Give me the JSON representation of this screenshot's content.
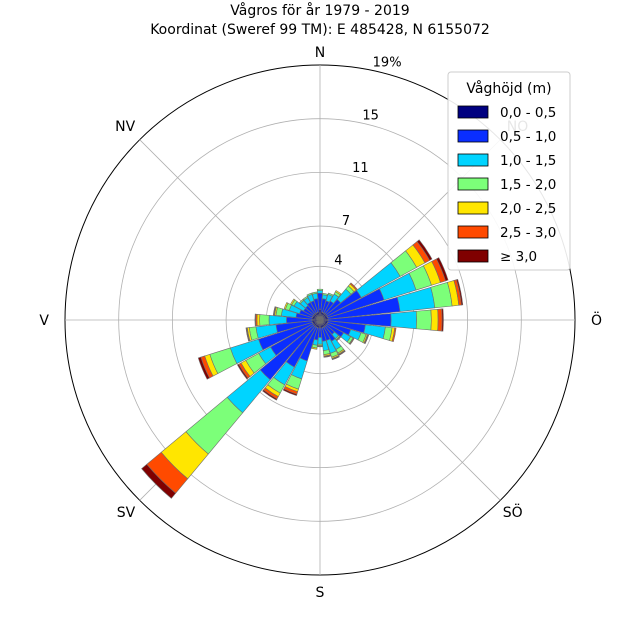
{
  "chart_data": {
    "type": "windrose",
    "title": "Vågros för år 1979 - 2019",
    "subtitle": "Koordinat (Sweref 99 TM): E 485428, N 6155072",
    "unit_suffix": "%",
    "direction_labels": [
      "N",
      "NO",
      "Ö",
      "SÖ",
      "S",
      "SV",
      "V",
      "NV"
    ],
    "ring_values": [
      4,
      7,
      11,
      15,
      19
    ],
    "r_max": 19,
    "legend": {
      "title": "Våghöjd (m)",
      "position": "top-right"
    },
    "bins": [
      {
        "label": "0,0 - 0,5",
        "color": "#000080"
      },
      {
        "label": "0,5 - 1,0",
        "color": "#0a2eff"
      },
      {
        "label": "1,0 - 1,5",
        "color": "#00d4ff"
      },
      {
        "label": "1,5 - 2,0",
        "color": "#7cff79"
      },
      {
        "label": "2,0 - 2,5",
        "color": "#ffe600"
      },
      {
        "label": "2,5 - 3,0",
        "color": "#ff4a00"
      },
      {
        "label": "≥ 3,0",
        "color": "#800000"
      }
    ],
    "sectors": [
      {
        "direction_deg": 0,
        "cum": [
          0.8,
          2.0,
          2.2,
          2.3,
          2.3,
          2.3,
          2.3
        ]
      },
      {
        "direction_deg": 11.25,
        "cum": [
          0.6,
          1.6,
          1.9,
          2.0,
          2.0,
          2.0,
          2.0
        ]
      },
      {
        "direction_deg": 22.5,
        "cum": [
          0.6,
          1.5,
          2.0,
          2.1,
          2.1,
          2.1,
          2.1
        ]
      },
      {
        "direction_deg": 33.75,
        "cum": [
          0.6,
          1.6,
          2.2,
          2.4,
          2.5,
          2.5,
          2.5
        ]
      },
      {
        "direction_deg": 45,
        "cum": [
          0.6,
          2.0,
          3.0,
          3.3,
          3.5,
          3.6,
          3.6
        ]
      },
      {
        "direction_deg": 56.25,
        "cum": [
          0.6,
          3.5,
          6.8,
          8.2,
          8.9,
          9.3,
          9.5
        ]
      },
      {
        "direction_deg": 67.5,
        "cum": [
          0.6,
          5.0,
          7.5,
          8.7,
          9.4,
          9.8,
          10.0
        ]
      },
      {
        "direction_deg": 78.75,
        "cum": [
          0.6,
          6.0,
          8.6,
          9.9,
          10.4,
          10.6,
          10.7
        ]
      },
      {
        "direction_deg": 90,
        "cum": [
          0.6,
          5.3,
          7.2,
          8.3,
          8.8,
          9.1,
          9.2
        ]
      },
      {
        "direction_deg": 101.25,
        "cum": [
          0.6,
          3.4,
          4.9,
          5.4,
          5.6,
          5.7,
          5.7
        ]
      },
      {
        "direction_deg": 112.5,
        "cum": [
          0.6,
          2.4,
          3.2,
          3.6,
          3.7,
          3.75,
          3.8
        ]
      },
      {
        "direction_deg": 123.75,
        "cum": [
          0.6,
          2.0,
          2.6,
          2.8,
          2.85,
          2.9,
          2.9
        ]
      },
      {
        "direction_deg": 135,
        "cum": [
          0.6,
          1.4,
          1.8,
          1.9,
          1.95,
          2.0,
          2.0
        ]
      },
      {
        "direction_deg": 146.25,
        "cum": [
          0.6,
          1.8,
          2.5,
          2.8,
          2.9,
          2.95,
          3.0
        ]
      },
      {
        "direction_deg": 157.5,
        "cum": [
          0.6,
          1.6,
          2.6,
          2.9,
          3.0,
          3.05,
          3.1
        ]
      },
      {
        "direction_deg": 168.75,
        "cum": [
          0.6,
          1.6,
          2.3,
          2.6,
          2.7,
          2.75,
          2.8
        ]
      },
      {
        "direction_deg": 180,
        "cum": [
          0.6,
          1.3,
          1.8,
          1.9,
          1.95,
          2.0,
          2.0
        ]
      },
      {
        "direction_deg": 191.25,
        "cum": [
          0.6,
          1.5,
          1.9,
          2.1,
          2.2,
          2.2,
          2.2
        ]
      },
      {
        "direction_deg": 202.5,
        "cum": [
          0.6,
          3.2,
          4.6,
          5.4,
          5.6,
          5.8,
          5.9
        ]
      },
      {
        "direction_deg": 213.75,
        "cum": [
          0.6,
          4.0,
          5.5,
          6.2,
          6.5,
          6.7,
          6.8
        ]
      },
      {
        "direction_deg": 225,
        "cum": [
          0.6,
          5.8,
          9.0,
          13.0,
          15.4,
          16.8,
          17.3
        ]
      },
      {
        "direction_deg": 236.25,
        "cum": [
          0.6,
          4.2,
          5.2,
          6.3,
          6.7,
          6.9,
          7.0
        ]
      },
      {
        "direction_deg": 247.5,
        "cum": [
          0.6,
          4.8,
          7.0,
          8.6,
          9.0,
          9.3,
          9.5
        ]
      },
      {
        "direction_deg": 258.75,
        "cum": [
          0.6,
          3.3,
          4.8,
          5.3,
          5.45,
          5.5,
          5.55
        ]
      },
      {
        "direction_deg": 270,
        "cum": [
          0.6,
          2.5,
          3.8,
          4.5,
          4.7,
          4.8,
          4.85
        ]
      },
      {
        "direction_deg": 281.25,
        "cum": [
          0.6,
          1.8,
          2.9,
          3.3,
          3.4,
          3.45,
          3.5
        ]
      },
      {
        "direction_deg": 292.5,
        "cum": [
          0.6,
          1.6,
          2.4,
          2.7,
          2.8,
          2.8,
          2.8
        ]
      },
      {
        "direction_deg": 303.75,
        "cum": [
          0.6,
          1.4,
          2.2,
          2.4,
          2.5,
          2.5,
          2.5
        ]
      },
      {
        "direction_deg": 315,
        "cum": [
          0.6,
          1.4,
          1.9,
          2.0,
          2.0,
          2.0,
          2.0
        ]
      },
      {
        "direction_deg": 326.25,
        "cum": [
          0.6,
          1.5,
          1.9,
          2.0,
          2.0,
          2.0,
          2.0
        ]
      },
      {
        "direction_deg": 337.5,
        "cum": [
          0.6,
          1.5,
          2.0,
          2.1,
          2.1,
          2.1,
          2.1
        ]
      },
      {
        "direction_deg": 348.75,
        "cum": [
          0.6,
          1.6,
          2.0,
          2.1,
          2.1,
          2.1,
          2.1
        ]
      }
    ]
  }
}
